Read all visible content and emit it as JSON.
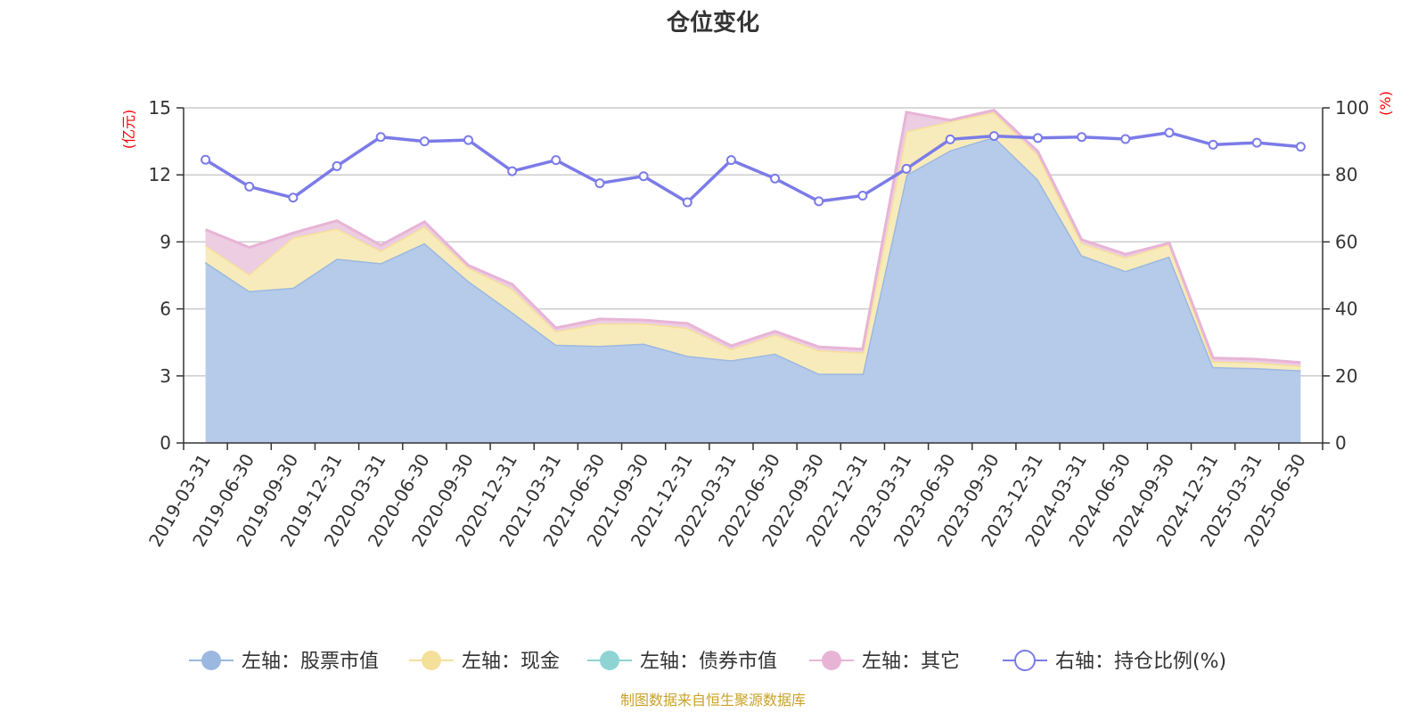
{
  "chart_data": {
    "type": "area",
    "title": "仓位变化",
    "source": "制图数据来自恒生聚源数据库",
    "y_left": {
      "unit": "(亿元)",
      "range": [
        0,
        15
      ],
      "ticks": [
        "0",
        "3",
        "6",
        "9",
        "12",
        "15"
      ]
    },
    "y_right": {
      "unit": "(%)",
      "range": [
        0,
        100
      ],
      "ticks": [
        "0",
        "20",
        "40",
        "60",
        "80",
        "100"
      ]
    },
    "grid": true,
    "legend_position": "bottom",
    "x": [
      "2019-03-31",
      "2019-06-30",
      "2019-09-30",
      "2019-12-31",
      "2020-03-31",
      "2020-06-30",
      "2020-09-30",
      "2020-12-31",
      "2021-03-31",
      "2021-06-30",
      "2021-09-30",
      "2021-12-31",
      "2022-03-31",
      "2022-06-30",
      "2022-09-30",
      "2022-12-31",
      "2023-03-31",
      "2023-06-30",
      "2023-09-30",
      "2023-12-31",
      "2024-03-31",
      "2024-06-30",
      "2024-09-30",
      "2024-12-31",
      "2025-03-31",
      "2025-06-30"
    ],
    "series": [
      {
        "name": "左轴：股票市值",
        "axis": "left",
        "stack": "total",
        "color": "#9bb8e0",
        "fill": "#b6cbea",
        "values": [
          8.1,
          6.8,
          6.95,
          8.25,
          8.05,
          8.95,
          7.25,
          5.85,
          4.4,
          4.35,
          4.45,
          3.9,
          3.7,
          4.0,
          3.1,
          3.1,
          12.0,
          13.1,
          13.7,
          11.8,
          8.4,
          7.7,
          8.35,
          3.4,
          3.35,
          3.25
        ]
      },
      {
        "name": "左轴：现金",
        "axis": "left",
        "stack": "total",
        "color": "#f5e09a",
        "fill": "#f8ebbb",
        "values": [
          0.75,
          0.75,
          2.25,
          1.35,
          0.55,
          0.75,
          0.6,
          1.05,
          0.6,
          1.0,
          0.9,
          1.25,
          0.5,
          0.85,
          1.05,
          0.95,
          1.95,
          1.3,
          1.1,
          1.1,
          0.55,
          0.6,
          0.55,
          0.25,
          0.25,
          0.2
        ]
      },
      {
        "name": "左轴：债券市值",
        "axis": "left",
        "stack": "total",
        "color": "#8fd3d3",
        "fill": "#b9e5e5",
        "values": [
          0,
          0,
          0,
          0,
          0,
          0,
          0,
          0,
          0,
          0,
          0,
          0,
          0,
          0,
          0,
          0,
          0,
          0,
          0,
          0,
          0,
          0,
          0,
          0,
          0,
          0
        ]
      },
      {
        "name": "左轴：其它",
        "axis": "left",
        "stack": "total",
        "color": "#e8b4d6",
        "fill": "#eccde2",
        "values": [
          0.7,
          1.2,
          0.2,
          0.35,
          0.25,
          0.2,
          0.1,
          0.2,
          0.15,
          0.2,
          0.15,
          0.2,
          0.15,
          0.15,
          0.15,
          0.15,
          0.85,
          0.05,
          0.1,
          0.15,
          0.15,
          0.15,
          0.05,
          0.15,
          0.15,
          0.15
        ]
      },
      {
        "name": "右轴：持仓比例(%)",
        "axis": "right",
        "type": "line",
        "color": "#7b7be8",
        "values": [
          84.5,
          76.5,
          73.2,
          82.6,
          91.3,
          90.0,
          90.4,
          81.1,
          84.4,
          77.5,
          79.6,
          71.8,
          84.4,
          78.9,
          72.1,
          73.8,
          81.8,
          90.6,
          91.6,
          91.0,
          91.3,
          90.7,
          92.6,
          89.0,
          89.6,
          88.4
        ]
      }
    ]
  }
}
